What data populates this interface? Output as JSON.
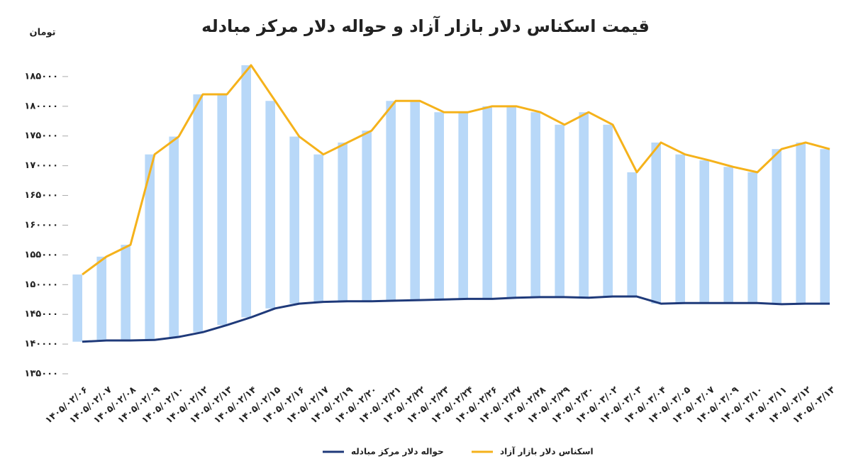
{
  "chart_data": {
    "type": "line",
    "title": "قیمت اسکناس دلار بازار آزاد و حواله دلار مرکز مبادله",
    "y_unit": "تومان",
    "categories": [
      "۱۴۰۵/۰۲/۰۶",
      "۱۴۰۵/۰۲/۰۷",
      "۱۴۰۵/۰۲/۰۸",
      "۱۴۰۵/۰۲/۰۹",
      "۱۴۰۵/۰۲/۱۰",
      "۱۴۰۵/۰۲/۱۲",
      "۱۴۰۵/۰۲/۱۳",
      "۱۴۰۵/۰۲/۱۴",
      "۱۴۰۵/۰۲/۱۵",
      "۱۴۰۵/۰۲/۱۶",
      "۱۴۰۵/۰۲/۱۷",
      "۱۴۰۵/۰۲/۱۹",
      "۱۴۰۵/۰۲/۲۰",
      "۱۴۰۵/۰۲/۲۱",
      "۱۴۰۵/۰۲/۲۲",
      "۱۴۰۵/۰۲/۲۳",
      "۱۴۰۵/۰۲/۲۴",
      "۱۴۰۵/۰۲/۲۶",
      "۱۴۰۵/۰۲/۲۷",
      "۱۴۰۵/۰۲/۲۸",
      "۱۴۰۵/۰۲/۲۹",
      "۱۴۰۵/۰۲/۳۰",
      "۱۴۰۵/۰۳/۰۲",
      "۱۴۰۵/۰۳/۰۳",
      "۱۴۰۵/۰۳/۰۴",
      "۱۴۰۵/۰۳/۰۵",
      "۱۴۰۵/۰۳/۰۷",
      "۱۴۰۵/۰۳/۰۹",
      "۱۴۰۵/۰۳/۱۰",
      "۱۴۰۵/۰۳/۱۱",
      "۱۴۰۵/۰۳/۱۲",
      "۱۴۰۵/۰۳/۱۳"
    ],
    "series": [
      {
        "name": "اسکناس دلار بازار آزاد",
        "color": "#f5b21b",
        "values": [
          151700,
          154700,
          156700,
          171900,
          174900,
          182000,
          182000,
          186900,
          180900,
          174900,
          171900,
          173900,
          175900,
          180900,
          180900,
          179000,
          179000,
          180000,
          180000,
          179000,
          176900,
          179000,
          176900,
          168900,
          173900,
          171900,
          170900,
          169800,
          168900,
          172800,
          173900,
          172800
        ]
      },
      {
        "name": "حواله دلار مرکز مبادله",
        "color": "#1f3a7a",
        "values": [
          140400,
          140600,
          140600,
          140700,
          141200,
          142000,
          143200,
          144500,
          146000,
          146800,
          147100,
          147200,
          147200,
          147300,
          147400,
          147500,
          147600,
          147600,
          147800,
          147900,
          147900,
          147800,
          148000,
          148000,
          146800,
          146900,
          146900,
          146900,
          146900,
          146700,
          146800,
          146800
        ]
      }
    ],
    "range_bars": {
      "color": "#b8d8f8"
    },
    "ylim": [
      135000,
      190000
    ],
    "yticks": [
      {
        "value": 135000,
        "label": "۱۳۵۰۰۰"
      },
      {
        "value": 140000,
        "label": "۱۴۰۰۰۰"
      },
      {
        "value": 145000,
        "label": "۱۴۵۰۰۰"
      },
      {
        "value": 150000,
        "label": "۱۵۰۰۰۰"
      },
      {
        "value": 155000,
        "label": "۱۵۵۰۰۰"
      },
      {
        "value": 160000,
        "label": "۱۶۰۰۰۰"
      },
      {
        "value": 165000,
        "label": "۱۶۵۰۰۰"
      },
      {
        "value": 170000,
        "label": "۱۷۰۰۰۰"
      },
      {
        "value": 175000,
        "label": "۱۷۵۰۰۰"
      },
      {
        "value": 180000,
        "label": "۱۸۰۰۰۰"
      },
      {
        "value": 185000,
        "label": "۱۸۵۰۰۰"
      }
    ],
    "grid": false
  }
}
